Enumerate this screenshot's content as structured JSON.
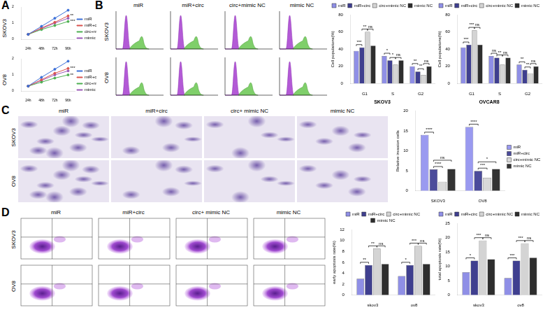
{
  "figure": {
    "panels": [
      "A",
      "B",
      "C",
      "D"
    ],
    "image_panels": [
      {
        "panel": "B",
        "columns": [
          "miR",
          "miR+circ",
          "circ+mimic NC",
          "mimic NC"
        ],
        "rows": [
          "SKOV3",
          "OV8"
        ]
      },
      {
        "panel": "C",
        "columns": [
          "miR",
          "miR+circ",
          "circ+ mimic NC",
          "mimic NC"
        ],
        "rows": [
          "SKOV3",
          "OV8"
        ]
      },
      {
        "panel": "D",
        "columns": [
          "miR",
          "miR+circ",
          "circ+ mimic NC",
          "mimic NC"
        ],
        "rows": [
          "SKOV3",
          "OV8"
        ]
      }
    ]
  },
  "chart_data": [
    {
      "type": "line",
      "title": "SKOV3",
      "categories": [
        "24h",
        "48h",
        "72h",
        "96h"
      ],
      "ylim": [
        0,
        2
      ],
      "yticks": [
        0,
        1,
        2
      ],
      "grid": false,
      "legend": "right",
      "marker": "circle",
      "series": [
        {
          "name": "miR",
          "color": "#3b6fd8",
          "values": [
            0.3,
            0.8,
            1.3,
            1.8
          ]
        },
        {
          "name": "miR+circ",
          "color": "#d9534f",
          "values": [
            0.3,
            0.7,
            1.05,
            1.45
          ]
        },
        {
          "name": "circ+mimic NC",
          "color": "#4caf50",
          "values": [
            0.3,
            0.6,
            0.85,
            1.1
          ]
        },
        {
          "name": "mimic NC",
          "color": "#9b59b6",
          "values": [
            0.3,
            0.65,
            1.0,
            1.3
          ]
        }
      ],
      "annotations": [
        {
          "series": "miR+circ",
          "text": "**"
        },
        {
          "series": "circ+mimic NC",
          "text": "***"
        }
      ]
    },
    {
      "type": "line",
      "title": "OV8",
      "categories": [
        "24h",
        "48h",
        "72h",
        "96h"
      ],
      "ylim": [
        0,
        2
      ],
      "yticks": [
        0,
        1,
        2
      ],
      "grid": false,
      "legend": "right",
      "marker": "circle",
      "series": [
        {
          "name": "miR",
          "color": "#3b6fd8",
          "values": [
            0.3,
            0.85,
            1.35,
            1.85
          ]
        },
        {
          "name": "miR+circ",
          "color": "#d9534f",
          "values": [
            0.3,
            0.7,
            1.1,
            1.4
          ]
        },
        {
          "name": "circ+mimic NC",
          "color": "#4caf50",
          "values": [
            0.3,
            0.55,
            0.8,
            1.0
          ]
        },
        {
          "name": "mimic NC",
          "color": "#9b59b6",
          "values": [
            0.3,
            0.65,
            1.0,
            1.25
          ]
        }
      ],
      "annotations": [
        {
          "series": "miR+circ",
          "text": "***"
        },
        {
          "series": "circ+mimic NC",
          "text": "**"
        }
      ]
    },
    {
      "type": "bar",
      "title": "SKOV3",
      "y_label": "Cell populations(%)",
      "categories": [
        "G1",
        "S",
        "G2"
      ],
      "ylim": [
        0,
        80
      ],
      "yticks": [
        0,
        20,
        40,
        60,
        80
      ],
      "grid": false,
      "legend": "top",
      "series": [
        {
          "name": "miR",
          "color": "#8f8fe6",
          "values": [
            38,
            32,
            20
          ]
        },
        {
          "name": "miR+circ",
          "color": "#3f3f8f",
          "values": [
            42,
            27,
            14
          ]
        },
        {
          "name": "circ+mimic NC",
          "color": "#d4d4d4",
          "values": [
            60,
            22,
            10
          ]
        },
        {
          "name": "mimic NC",
          "color": "#2e2e2e",
          "values": [
            44,
            27,
            20
          ]
        }
      ],
      "annotations": [
        {
          "category": "G1",
          "from": "miR",
          "to": "miR+circ",
          "text": "***"
        },
        {
          "category": "G1",
          "from": "miR+circ",
          "to": "circ+mimic NC",
          "text": "**"
        },
        {
          "category": "G1",
          "from": "circ+mimic NC",
          "to": "mimic NC",
          "text": "ns"
        },
        {
          "category": "S",
          "from": "miR",
          "to": "miR+circ",
          "text": "*"
        },
        {
          "category": "S",
          "from": "miR+circ",
          "to": "circ+mimic NC",
          "text": "*"
        },
        {
          "category": "S",
          "from": "circ+mimic NC",
          "to": "mimic NC",
          "text": "ns"
        },
        {
          "category": "G2",
          "from": "miR",
          "to": "miR+circ",
          "text": "**"
        },
        {
          "category": "G2",
          "from": "miR+circ",
          "to": "circ+mimic NC",
          "text": "**"
        },
        {
          "category": "G2",
          "from": "circ+mimic NC",
          "to": "mimic NC",
          "text": "ns"
        }
      ]
    },
    {
      "type": "bar",
      "title": "OVCAR8",
      "y_label": "Cell populations(%)",
      "categories": [
        "G1",
        "S",
        "G2"
      ],
      "ylim": [
        0,
        80
      ],
      "yticks": [
        0,
        20,
        40,
        60,
        80
      ],
      "grid": false,
      "legend": "top",
      "series": [
        {
          "name": "miR",
          "color": "#8f8fe6",
          "values": [
            42,
            32,
            22
          ]
        },
        {
          "name": "miR+circ",
          "color": "#3f3f8f",
          "values": [
            45,
            30,
            16
          ]
        },
        {
          "name": "circ+mimic NC",
          "color": "#d4d4d4",
          "values": [
            62,
            22,
            12
          ]
        },
        {
          "name": "mimic NC",
          "color": "#2e2e2e",
          "values": [
            45,
            30,
            20
          ]
        }
      ],
      "annotations": [
        {
          "category": "G1",
          "from": "miR",
          "to": "miR+circ",
          "text": "***"
        },
        {
          "category": "G1",
          "from": "miR+circ",
          "to": "circ+mimic NC",
          "text": "***"
        },
        {
          "category": "G1",
          "from": "circ+mimic NC",
          "to": "mimic NC",
          "text": "ns"
        },
        {
          "category": "S",
          "from": "miR",
          "to": "miR+circ",
          "text": "ns"
        },
        {
          "category": "S",
          "from": "miR+circ",
          "to": "circ+mimic NC",
          "text": "**"
        },
        {
          "category": "S",
          "from": "circ+mimic NC",
          "to": "mimic NC",
          "text": "ns"
        },
        {
          "category": "G2",
          "from": "miR",
          "to": "miR+circ",
          "text": "**"
        },
        {
          "category": "G2",
          "from": "miR+circ",
          "to": "circ+mimic NC",
          "text": "**"
        },
        {
          "category": "G2",
          "from": "circ+mimic NC",
          "to": "mimic NC",
          "text": "ns"
        }
      ]
    },
    {
      "type": "bar",
      "y_label": "Relative invasion cells",
      "categories": [
        "SKOV3",
        "OV8"
      ],
      "ylim": [
        0,
        20
      ],
      "yticks": [
        0,
        5,
        10,
        15,
        20
      ],
      "grid": false,
      "legend": "right",
      "series": [
        {
          "name": "miR",
          "color": "#9a9af0",
          "values": [
            14,
            16
          ]
        },
        {
          "name": "miR+circ",
          "color": "#4b4b9b",
          "values": [
            5.4,
            5.0
          ]
        },
        {
          "name": "circ+mimic NC",
          "color": "#d9d9d9",
          "values": [
            2.3,
            3.3
          ]
        },
        {
          "name": "mimic NC",
          "color": "#333333",
          "values": [
            5.5,
            5.5
          ]
        }
      ],
      "annotations": [
        {
          "category": "SKOV3",
          "from": "miR",
          "to": "miR+circ",
          "text": "****"
        },
        {
          "category": "SKOV3",
          "from": "miR+circ",
          "to": "circ+mimic NC",
          "text": "****"
        },
        {
          "category": "SKOV3",
          "from": "miR+circ",
          "to": "mimic NC",
          "text": "ns"
        },
        {
          "category": "OV8",
          "from": "miR",
          "to": "miR+circ",
          "text": "****"
        },
        {
          "category": "OV8",
          "from": "miR+circ",
          "to": "circ+mimic NC",
          "text": "***"
        },
        {
          "category": "OV8",
          "from": "miR+circ",
          "to": "mimic NC",
          "text": "*"
        }
      ]
    },
    {
      "type": "bar",
      "y_label": "early apoptosis rate(%)",
      "categories": [
        "skov3",
        "ov8"
      ],
      "ylim": [
        0,
        12
      ],
      "yticks": [
        0,
        2,
        4,
        6,
        8,
        10,
        12
      ],
      "grid": false,
      "legend": "top",
      "series": [
        {
          "name": "miR",
          "color": "#8f8fe6",
          "values": [
            3,
            3.5
          ]
        },
        {
          "name": "miR+circ",
          "color": "#3f3f8f",
          "values": [
            5.5,
            5.5
          ]
        },
        {
          "name": "circ+mimic NC",
          "color": "#d4d4d4",
          "values": [
            8.5,
            9
          ]
        },
        {
          "name": "mimic NC",
          "color": "#2e2e2e",
          "values": [
            5.7,
            5.7
          ]
        }
      ],
      "annotations": [
        {
          "category": "skov3",
          "from": "miR",
          "to": "miR+circ",
          "text": "**"
        },
        {
          "category": "skov3",
          "from": "miR+circ",
          "to": "circ+mimic NC",
          "text": "**"
        },
        {
          "category": "skov3",
          "from": "circ+mimic NC",
          "to": "mimic NC",
          "text": "ns"
        },
        {
          "category": "ov8",
          "from": "miR",
          "to": "miR+circ",
          "text": "*"
        },
        {
          "category": "ov8",
          "from": "miR+circ",
          "to": "circ+mimic NC",
          "text": "***"
        },
        {
          "category": "ov8",
          "from": "circ+mimic NC",
          "to": "mimic NC",
          "text": "ns"
        }
      ]
    },
    {
      "type": "bar",
      "y_label": "total apoptosis rate(%)",
      "categories": [
        "skov3",
        "ov8"
      ],
      "ylim": [
        0,
        25
      ],
      "yticks": [
        0,
        5,
        10,
        15,
        20,
        25
      ],
      "grid": false,
      "legend": "top",
      "series": [
        {
          "name": "miR",
          "color": "#8f8fe6",
          "values": [
            8,
            6
          ]
        },
        {
          "name": "miR+circ",
          "color": "#3f3f8f",
          "values": [
            12,
            12
          ]
        },
        {
          "name": "circ+mimic NC",
          "color": "#d4d4d4",
          "values": [
            19,
            18
          ]
        },
        {
          "name": "mimic NC",
          "color": "#2e2e2e",
          "values": [
            12.5,
            13
          ]
        }
      ],
      "annotations": [
        {
          "category": "skov3",
          "from": "miR",
          "to": "miR+circ",
          "text": "*"
        },
        {
          "category": "skov3",
          "from": "miR+circ",
          "to": "circ+mimic NC",
          "text": "***"
        },
        {
          "category": "skov3",
          "from": "circ+mimic NC",
          "to": "mimic NC",
          "text": "ns"
        },
        {
          "category": "ov8",
          "from": "miR",
          "to": "miR+circ",
          "text": "***"
        },
        {
          "category": "ov8",
          "from": "miR+circ",
          "to": "circ+mimic NC",
          "text": "***"
        },
        {
          "category": "ov8",
          "from": "circ+mimic NC",
          "to": "mimic NC",
          "text": "ns"
        }
      ]
    }
  ]
}
